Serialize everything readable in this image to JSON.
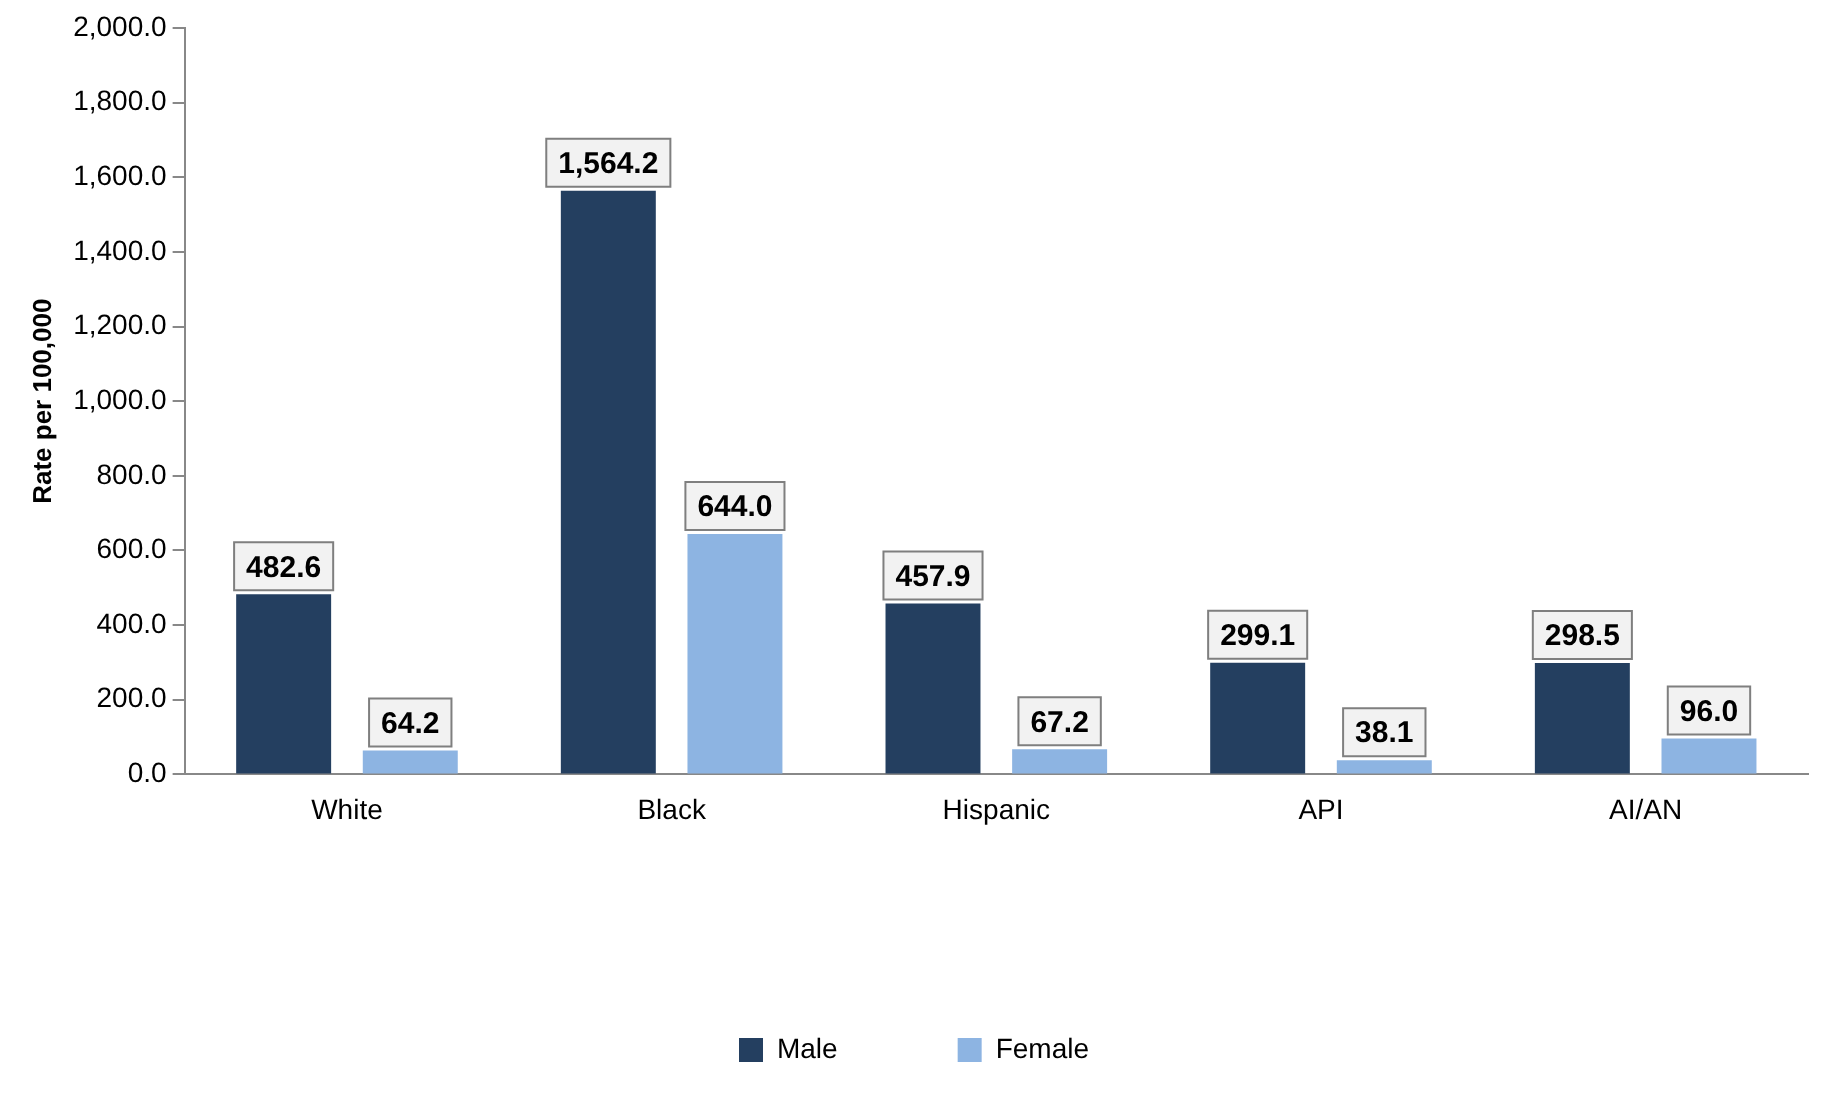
{
  "chart_data": {
    "type": "bar",
    "ylabel": "Rate per 100,000",
    "categories": [
      "White",
      "Black",
      "Hispanic",
      "API",
      "AI/AN"
    ],
    "series": [
      {
        "name": "Male",
        "color": "#243f60",
        "values": [
          482.6,
          1564.2,
          457.9,
          299.1,
          298.5
        ],
        "value_labels": [
          "482.6",
          "1,564.2",
          "457.9",
          "299.1",
          "298.5"
        ]
      },
      {
        "name": "Female",
        "color": "#8db4e2",
        "values": [
          64.2,
          644.0,
          67.2,
          38.1,
          96.0
        ],
        "value_labels": [
          "64.2",
          "644.0",
          "67.2",
          "38.1",
          "96.0"
        ]
      }
    ],
    "ylim": [
      0,
      2000
    ],
    "yticks": [
      {
        "value": 0,
        "label": "0.0"
      },
      {
        "value": 200,
        "label": "200.0"
      },
      {
        "value": 400,
        "label": "400.0"
      },
      {
        "value": 600,
        "label": "600.0"
      },
      {
        "value": 800,
        "label": "800.0"
      },
      {
        "value": 1000,
        "label": "1,000.0"
      },
      {
        "value": 1200,
        "label": "1,200.0"
      },
      {
        "value": 1400,
        "label": "1,400.0"
      },
      {
        "value": 1600,
        "label": "1,600.0"
      },
      {
        "value": 1800,
        "label": "1,800.0"
      },
      {
        "value": 2000,
        "label": "2,000.0"
      }
    ],
    "grid": false,
    "legend": "bottom"
  }
}
